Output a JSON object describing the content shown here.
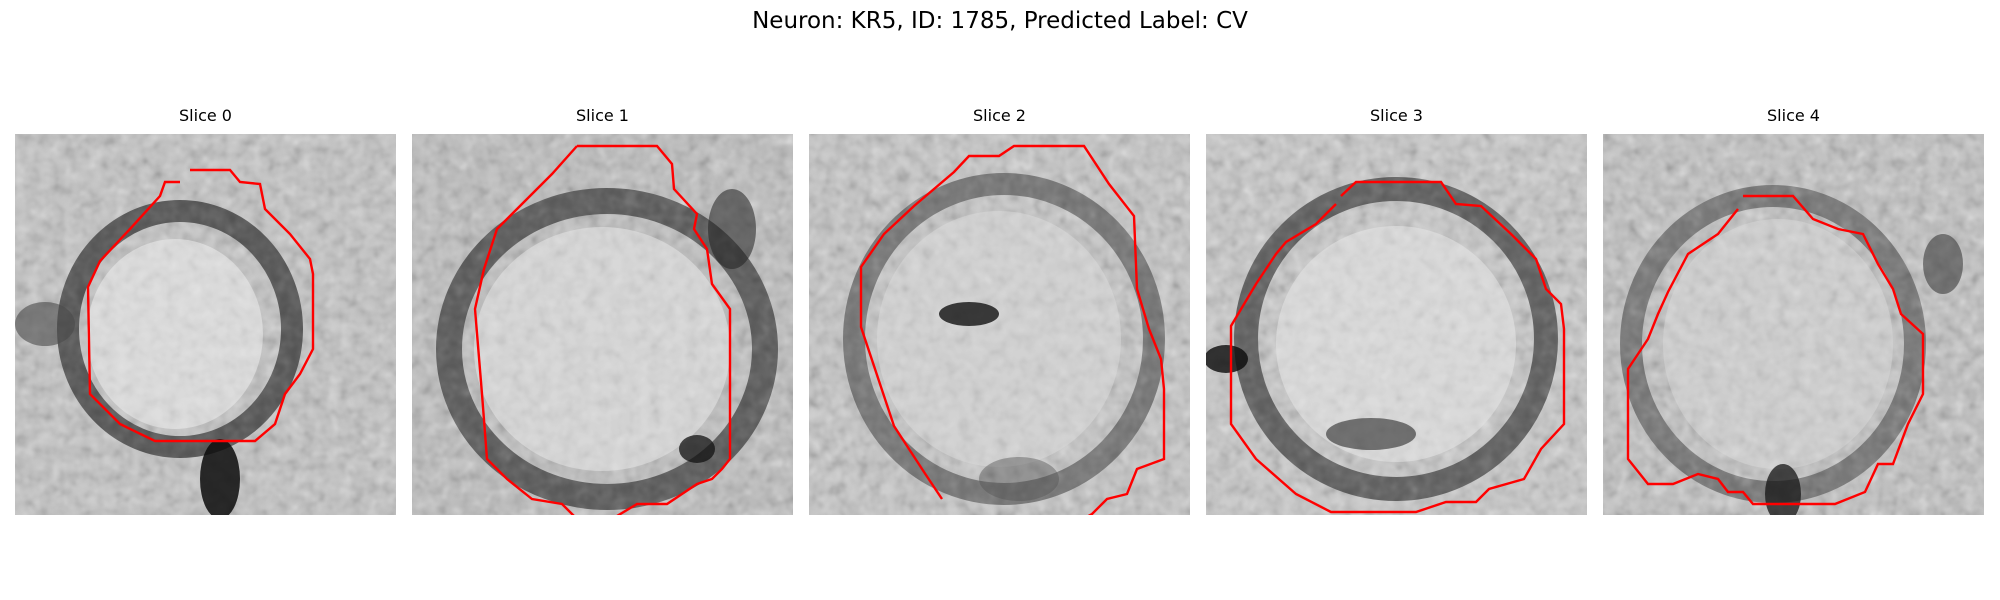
{
  "figure": {
    "title": "Neuron: KR5, ID: 1785, Predicted Label: CV",
    "contour_color": "#ff0000"
  },
  "panels": [
    {
      "title": "Slice 0"
    },
    {
      "title": "Slice 1"
    },
    {
      "title": "Slice 2"
    },
    {
      "title": "Slice 3"
    },
    {
      "title": "Slice 4"
    }
  ]
}
